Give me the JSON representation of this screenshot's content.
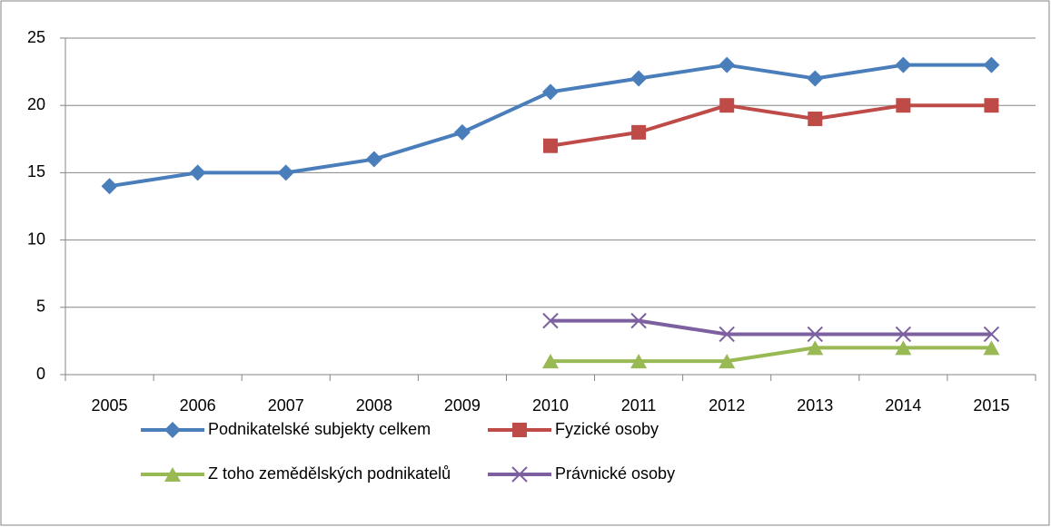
{
  "chart_data": {
    "type": "line",
    "categories": [
      "2005",
      "2006",
      "2007",
      "2008",
      "2009",
      "2010",
      "2011",
      "2012",
      "2013",
      "2014",
      "2015"
    ],
    "series": [
      {
        "name": "Podnikatelské subjekty celkem",
        "color": "#4a7ebb",
        "marker": "diamond",
        "values": [
          14,
          15,
          15,
          16,
          18,
          21,
          22,
          23,
          22,
          23,
          23
        ]
      },
      {
        "name": "Fyzické osoby",
        "color": "#be4b48",
        "marker": "square",
        "values": [
          null,
          null,
          null,
          null,
          null,
          17,
          18,
          20,
          19,
          20,
          20
        ]
      },
      {
        "name": "Z toho zemědělských podnikatelů",
        "color": "#98b954",
        "marker": "triangle",
        "values": [
          null,
          null,
          null,
          null,
          null,
          1,
          1,
          1,
          2,
          2,
          2
        ]
      },
      {
        "name": "Právnické osoby",
        "color": "#7d60a0",
        "marker": "x",
        "values": [
          null,
          null,
          null,
          null,
          null,
          4,
          4,
          3,
          3,
          3,
          3
        ]
      }
    ],
    "ylim": [
      0,
      25
    ],
    "yticks": [
      0,
      5,
      10,
      15,
      20,
      25
    ],
    "grid": true,
    "legend": "bottom"
  }
}
